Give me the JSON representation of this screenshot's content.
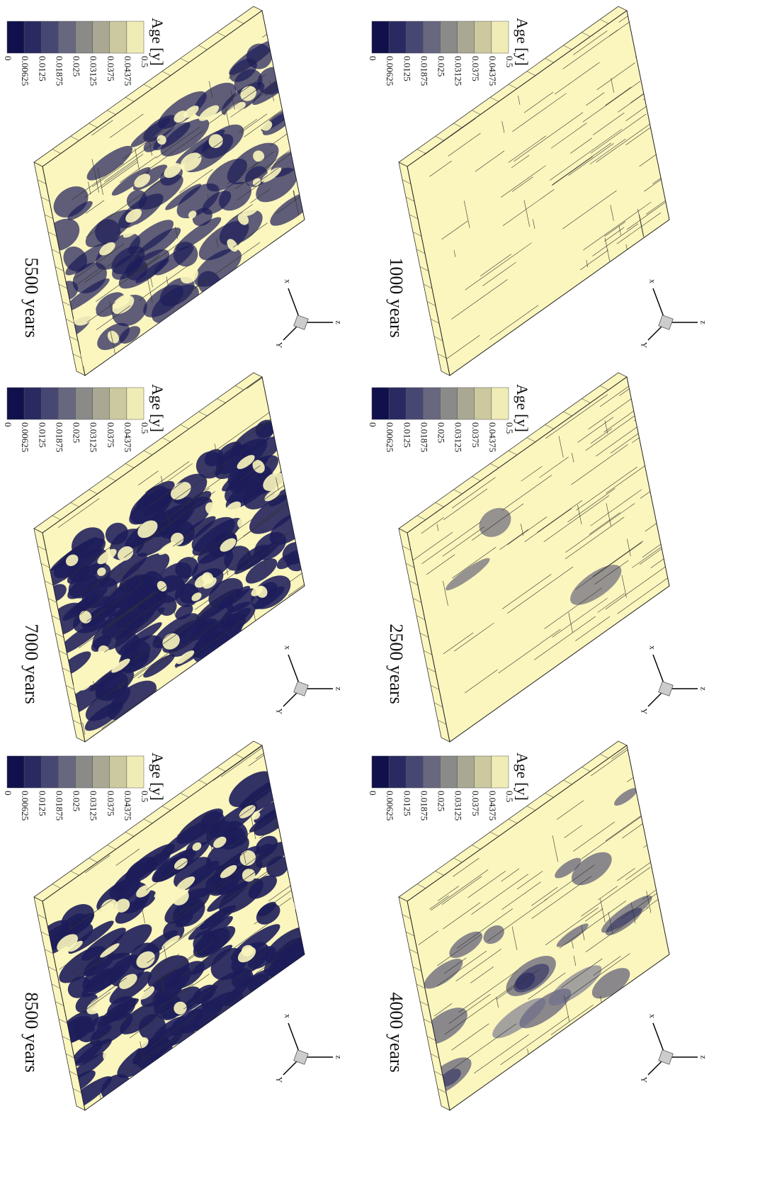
{
  "panels": [
    {
      "label": "1000 years",
      "legend": {
        "title": "Age [y]",
        "ticks": [
          "0",
          "0.00625",
          "0.0125",
          "0.01875",
          "0.025",
          "0.03125",
          "0.0375",
          "0.04375",
          "0.5"
        ]
      },
      "axes": [
        "x",
        "z",
        "Y"
      ]
    },
    {
      "label": "2500 years",
      "legend": {
        "title": "Age [y]",
        "ticks": [
          "0",
          "0.00625",
          "0.0125",
          "0.01875",
          "0.025",
          "0.03125",
          "0.0375",
          "0.04375",
          "0.5"
        ]
      },
      "axes": [
        "x",
        "z",
        "Y"
      ]
    },
    {
      "label": "4000 years",
      "legend": {
        "title": "Age [y]",
        "ticks": [
          "0",
          "0.00625",
          "0.0125",
          "0.01875",
          "0.025",
          "0.03125",
          "0.0375",
          "0.04375",
          "0.5"
        ]
      },
      "axes": [
        "x",
        "z",
        "Y"
      ]
    },
    {
      "label": "5500 years",
      "legend": {
        "title": "Age [y]",
        "ticks": [
          "0",
          "0.00625",
          "0.0125",
          "0.01875",
          "0.025",
          "0.03125",
          "0.0375",
          "0.04375",
          "0.5"
        ]
      },
      "axes": [
        "x",
        "z",
        "Y"
      ]
    },
    {
      "label": "7000 years",
      "legend": {
        "title": "Age [y]",
        "ticks": [
          "0",
          "0.00625",
          "0.0125",
          "0.01875",
          "0.025",
          "0.03125",
          "0.0375",
          "0.04375",
          "0.5"
        ]
      },
      "axes": [
        "x",
        "z",
        "Y"
      ]
    },
    {
      "label": "8500 years",
      "legend": {
        "title": "Age [y]",
        "ticks": [
          "0",
          "0.00625",
          "0.0125",
          "0.01875",
          "0.025",
          "0.03125",
          "0.0375",
          "0.04375",
          "0.5"
        ]
      },
      "axes": [
        "x",
        "z",
        "Y"
      ]
    }
  ]
}
